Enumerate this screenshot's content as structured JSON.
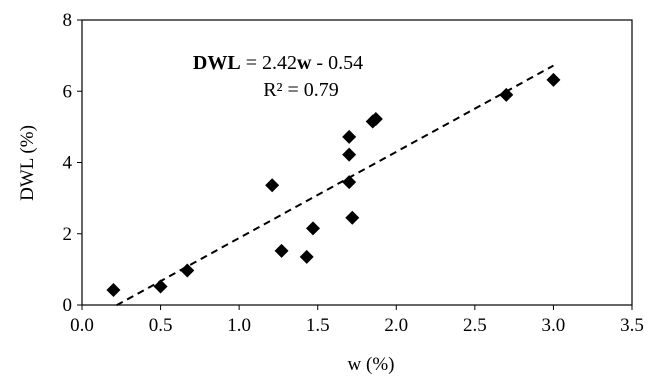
{
  "chart_data": {
    "type": "scatter",
    "xlabel": "w (%)",
    "ylabel": "DWL (%)",
    "xlim": [
      0,
      3.5
    ],
    "ylim": [
      0,
      8
    ],
    "x_ticks": [
      "0.0",
      "0.5",
      "1.0",
      "1.5",
      "2.0",
      "2.5",
      "3.0",
      "3.5"
    ],
    "y_ticks": [
      "0",
      "2",
      "4",
      "6",
      "8"
    ],
    "grid": false,
    "points": [
      {
        "x": 0.2,
        "y": 0.42
      },
      {
        "x": 0.5,
        "y": 0.52
      },
      {
        "x": 0.67,
        "y": 0.97
      },
      {
        "x": 1.21,
        "y": 3.36
      },
      {
        "x": 1.27,
        "y": 1.52
      },
      {
        "x": 1.43,
        "y": 1.35
      },
      {
        "x": 1.47,
        "y": 2.15
      },
      {
        "x": 1.7,
        "y": 4.72
      },
      {
        "x": 1.7,
        "y": 4.22
      },
      {
        "x": 1.7,
        "y": 3.45
      },
      {
        "x": 1.72,
        "y": 2.45
      },
      {
        "x": 1.85,
        "y": 5.15
      },
      {
        "x": 1.87,
        "y": 5.22
      },
      {
        "x": 2.7,
        "y": 5.9
      },
      {
        "x": 3.0,
        "y": 6.32
      }
    ],
    "trendline": {
      "type": "linear",
      "slope": 2.42,
      "intercept": -0.54,
      "x_range": [
        0.22,
        3.0
      ],
      "style": "dashed"
    },
    "annotation": {
      "eq_bold_1": "DWL",
      "eq_text_1": " = 2.42",
      "eq_bold_2": "w",
      "eq_text_2": " - 0.54",
      "r2": "R² = 0.79"
    }
  }
}
